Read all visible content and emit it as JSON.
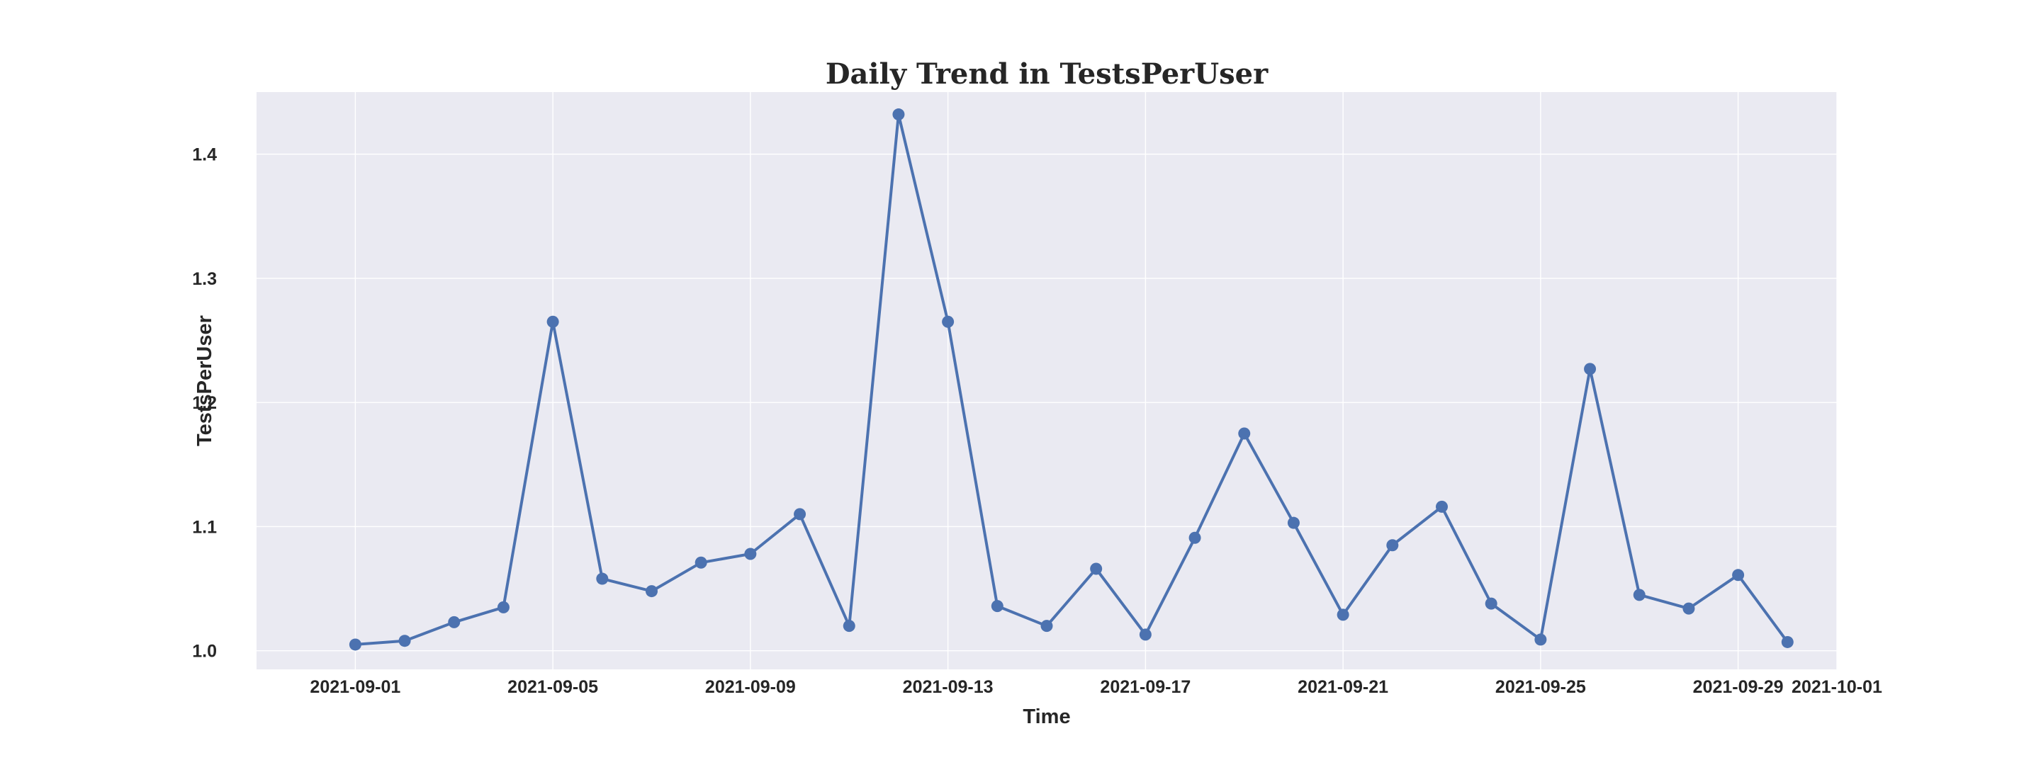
{
  "chart_data": {
    "type": "line",
    "title": "Daily Trend in TestsPerUser",
    "xlabel": "Time",
    "ylabel": "TestsPerUser",
    "grid": true,
    "colors": {
      "line": "#4c72b0",
      "plot_background": "#eaeaf2",
      "grid": "#ffffff"
    },
    "x_ticks": [
      "2021-09-01",
      "2021-09-05",
      "2021-09-09",
      "2021-09-13",
      "2021-09-17",
      "2021-09-21",
      "2021-09-25",
      "2021-09-29",
      "2021-10-01"
    ],
    "y_ticks": [
      "1.0",
      "1.1",
      "1.2",
      "1.3",
      "1.4"
    ],
    "xlim": [
      "2021-08-30",
      "2021-10-01"
    ],
    "ylim": [
      0.985,
      1.45
    ],
    "series": [
      {
        "x": [
          "2021-09-01",
          "2021-09-02",
          "2021-09-03",
          "2021-09-04",
          "2021-09-05",
          "2021-09-06",
          "2021-09-07",
          "2021-09-08",
          "2021-09-09",
          "2021-09-10",
          "2021-09-11",
          "2021-09-12",
          "2021-09-13",
          "2021-09-14",
          "2021-09-15",
          "2021-09-16",
          "2021-09-17",
          "2021-09-18",
          "2021-09-19",
          "2021-09-20",
          "2021-09-21",
          "2021-09-22",
          "2021-09-23",
          "2021-09-24",
          "2021-09-25",
          "2021-09-26",
          "2021-09-27",
          "2021-09-28",
          "2021-09-29",
          "2021-09-30"
        ],
        "y": [
          1.005,
          1.008,
          1.023,
          1.035,
          1.265,
          1.058,
          1.048,
          1.071,
          1.078,
          1.11,
          1.02,
          1.432,
          1.265,
          1.036,
          1.02,
          1.066,
          1.013,
          1.091,
          1.175,
          1.103,
          1.029,
          1.085,
          1.116,
          1.038,
          1.009,
          1.227,
          1.045,
          1.034,
          1.061,
          1.007
        ]
      }
    ]
  }
}
